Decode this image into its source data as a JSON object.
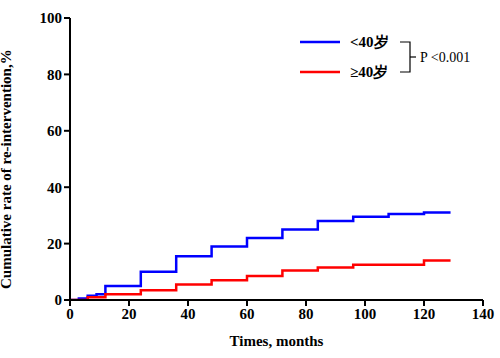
{
  "chart_data": {
    "type": "line",
    "line_style": "step",
    "xlabel": "Times,   months",
    "ylabel": "Cumulative rate of re-intervention,%",
    "annotation": "P <0.001",
    "xlim": [
      0,
      140
    ],
    "xticks": [
      0,
      20,
      40,
      60,
      80,
      100,
      120,
      140
    ],
    "ylim": [
      0,
      100
    ],
    "yticks": [
      0,
      20,
      40,
      60,
      80,
      100
    ],
    "grid": false,
    "legend": "upper right",
    "series": [
      {
        "name": "<40岁",
        "color": "#0000ff",
        "x": [
          0,
          3,
          6,
          9,
          12,
          24,
          36,
          48,
          60,
          72,
          84,
          96,
          108,
          120,
          129
        ],
        "values": [
          0,
          0.5,
          1.5,
          2,
          5,
          10,
          15.5,
          19,
          22,
          25,
          28,
          29.5,
          30.5,
          31,
          31
        ]
      },
      {
        "name": "≥40岁",
        "color": "#ff0000",
        "x": [
          0,
          6,
          12,
          24,
          36,
          48,
          60,
          72,
          84,
          96,
          108,
          120,
          129
        ],
        "values": [
          0,
          1,
          2,
          3.5,
          5.5,
          7,
          8.5,
          10.5,
          11.5,
          12.5,
          12.5,
          14,
          14
        ]
      }
    ]
  }
}
